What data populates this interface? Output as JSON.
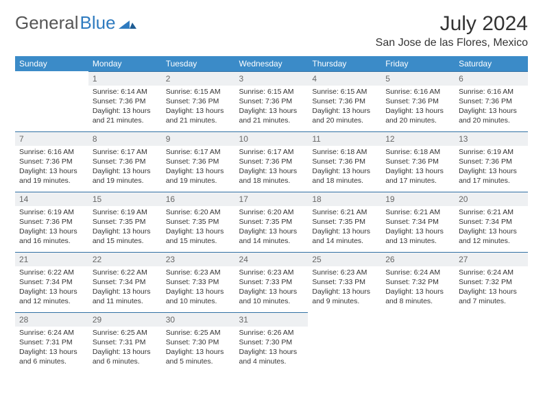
{
  "brand": {
    "part1": "General",
    "part2": "Blue"
  },
  "title": "July 2024",
  "location": "San Jose de las Flores, Mexico",
  "colors": {
    "header_bg": "#3b8bc8",
    "header_text": "#ffffff",
    "daynum_bg": "#eef0f2",
    "daynum_text": "#666666",
    "rule": "#2f6fa3",
    "body_text": "#333333",
    "page_bg": "#ffffff"
  },
  "weekdays": [
    "Sunday",
    "Monday",
    "Tuesday",
    "Wednesday",
    "Thursday",
    "Friday",
    "Saturday"
  ],
  "weeks": [
    [
      null,
      {
        "n": "1",
        "sr": "6:14 AM",
        "ss": "7:36 PM",
        "dl": "13 hours and 21 minutes."
      },
      {
        "n": "2",
        "sr": "6:15 AM",
        "ss": "7:36 PM",
        "dl": "13 hours and 21 minutes."
      },
      {
        "n": "3",
        "sr": "6:15 AM",
        "ss": "7:36 PM",
        "dl": "13 hours and 21 minutes."
      },
      {
        "n": "4",
        "sr": "6:15 AM",
        "ss": "7:36 PM",
        "dl": "13 hours and 20 minutes."
      },
      {
        "n": "5",
        "sr": "6:16 AM",
        "ss": "7:36 PM",
        "dl": "13 hours and 20 minutes."
      },
      {
        "n": "6",
        "sr": "6:16 AM",
        "ss": "7:36 PM",
        "dl": "13 hours and 20 minutes."
      }
    ],
    [
      {
        "n": "7",
        "sr": "6:16 AM",
        "ss": "7:36 PM",
        "dl": "13 hours and 19 minutes."
      },
      {
        "n": "8",
        "sr": "6:17 AM",
        "ss": "7:36 PM",
        "dl": "13 hours and 19 minutes."
      },
      {
        "n": "9",
        "sr": "6:17 AM",
        "ss": "7:36 PM",
        "dl": "13 hours and 19 minutes."
      },
      {
        "n": "10",
        "sr": "6:17 AM",
        "ss": "7:36 PM",
        "dl": "13 hours and 18 minutes."
      },
      {
        "n": "11",
        "sr": "6:18 AM",
        "ss": "7:36 PM",
        "dl": "13 hours and 18 minutes."
      },
      {
        "n": "12",
        "sr": "6:18 AM",
        "ss": "7:36 PM",
        "dl": "13 hours and 17 minutes."
      },
      {
        "n": "13",
        "sr": "6:19 AM",
        "ss": "7:36 PM",
        "dl": "13 hours and 17 minutes."
      }
    ],
    [
      {
        "n": "14",
        "sr": "6:19 AM",
        "ss": "7:36 PM",
        "dl": "13 hours and 16 minutes."
      },
      {
        "n": "15",
        "sr": "6:19 AM",
        "ss": "7:35 PM",
        "dl": "13 hours and 15 minutes."
      },
      {
        "n": "16",
        "sr": "6:20 AM",
        "ss": "7:35 PM",
        "dl": "13 hours and 15 minutes."
      },
      {
        "n": "17",
        "sr": "6:20 AM",
        "ss": "7:35 PM",
        "dl": "13 hours and 14 minutes."
      },
      {
        "n": "18",
        "sr": "6:21 AM",
        "ss": "7:35 PM",
        "dl": "13 hours and 14 minutes."
      },
      {
        "n": "19",
        "sr": "6:21 AM",
        "ss": "7:34 PM",
        "dl": "13 hours and 13 minutes."
      },
      {
        "n": "20",
        "sr": "6:21 AM",
        "ss": "7:34 PM",
        "dl": "13 hours and 12 minutes."
      }
    ],
    [
      {
        "n": "21",
        "sr": "6:22 AM",
        "ss": "7:34 PM",
        "dl": "13 hours and 12 minutes."
      },
      {
        "n": "22",
        "sr": "6:22 AM",
        "ss": "7:34 PM",
        "dl": "13 hours and 11 minutes."
      },
      {
        "n": "23",
        "sr": "6:23 AM",
        "ss": "7:33 PM",
        "dl": "13 hours and 10 minutes."
      },
      {
        "n": "24",
        "sr": "6:23 AM",
        "ss": "7:33 PM",
        "dl": "13 hours and 10 minutes."
      },
      {
        "n": "25",
        "sr": "6:23 AM",
        "ss": "7:33 PM",
        "dl": "13 hours and 9 minutes."
      },
      {
        "n": "26",
        "sr": "6:24 AM",
        "ss": "7:32 PM",
        "dl": "13 hours and 8 minutes."
      },
      {
        "n": "27",
        "sr": "6:24 AM",
        "ss": "7:32 PM",
        "dl": "13 hours and 7 minutes."
      }
    ],
    [
      {
        "n": "28",
        "sr": "6:24 AM",
        "ss": "7:31 PM",
        "dl": "13 hours and 6 minutes."
      },
      {
        "n": "29",
        "sr": "6:25 AM",
        "ss": "7:31 PM",
        "dl": "13 hours and 6 minutes."
      },
      {
        "n": "30",
        "sr": "6:25 AM",
        "ss": "7:30 PM",
        "dl": "13 hours and 5 minutes."
      },
      {
        "n": "31",
        "sr": "6:26 AM",
        "ss": "7:30 PM",
        "dl": "13 hours and 4 minutes."
      },
      null,
      null,
      null
    ]
  ],
  "labels": {
    "sunrise": "Sunrise:",
    "sunset": "Sunset:",
    "daylight": "Daylight:"
  }
}
